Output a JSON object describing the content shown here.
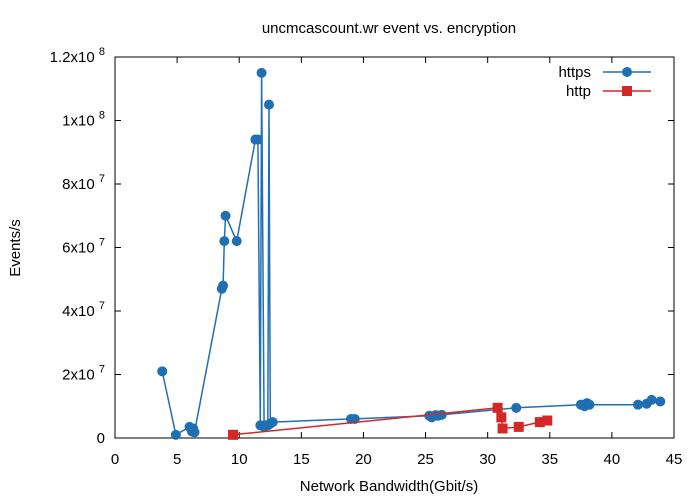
{
  "chart_data": {
    "type": "line",
    "title": "uncmcascount.wr event vs. encryption",
    "xlabel": "Network Bandwidth(Gbit/s)",
    "ylabel": "Events/s",
    "xlim": [
      0,
      45
    ],
    "ylim": [
      0,
      120000000
    ],
    "x_ticks": [
      0,
      5,
      10,
      15,
      20,
      25,
      30,
      35,
      40,
      45
    ],
    "y_ticks": [
      {
        "value": 0,
        "mantissa": "0",
        "exp": ""
      },
      {
        "value": 20000000,
        "mantissa": "2x10",
        "exp": "7"
      },
      {
        "value": 40000000,
        "mantissa": "4x10",
        "exp": "7"
      },
      {
        "value": 60000000,
        "mantissa": "6x10",
        "exp": "7"
      },
      {
        "value": 80000000,
        "mantissa": "8x10",
        "exp": "7"
      },
      {
        "value": 100000000,
        "mantissa": "1x10",
        "exp": "8"
      },
      {
        "value": 120000000,
        "mantissa": "1.2x10",
        "exp": "8"
      }
    ],
    "grid": false,
    "legend_position": "top-right",
    "series": [
      {
        "name": "https",
        "color": "#1f6fb2",
        "marker": "circle",
        "points": [
          [
            3.8,
            21000000
          ],
          [
            4.9,
            1000000
          ],
          [
            6.0,
            3500000
          ],
          [
            6.2,
            2000000
          ],
          [
            6.3,
            3000000
          ],
          [
            6.4,
            1800000
          ],
          [
            8.6,
            47000000
          ],
          [
            8.7,
            48000000
          ],
          [
            8.8,
            62000000
          ],
          [
            8.9,
            70000000
          ],
          [
            9.8,
            62000000
          ],
          [
            11.3,
            94000000
          ],
          [
            11.5,
            94000000
          ],
          [
            11.7,
            4000000
          ],
          [
            11.8,
            115000000
          ],
          [
            12.0,
            3500000
          ],
          [
            12.1,
            4000000
          ],
          [
            12.3,
            4000000
          ],
          [
            12.4,
            105000000
          ],
          [
            12.5,
            4500000
          ],
          [
            12.7,
            5000000
          ],
          [
            19.0,
            6000000
          ],
          [
            19.3,
            6000000
          ],
          [
            25.3,
            7000000
          ],
          [
            25.5,
            6500000
          ],
          [
            25.8,
            7200000
          ],
          [
            26.0,
            7000000
          ],
          [
            26.3,
            7300000
          ],
          [
            32.3,
            9500000
          ],
          [
            37.5,
            10500000
          ],
          [
            37.8,
            10000000
          ],
          [
            38.0,
            11000000
          ],
          [
            38.2,
            10500000
          ],
          [
            42.1,
            10500000
          ],
          [
            42.8,
            10800000
          ],
          [
            43.2,
            12000000
          ],
          [
            43.9,
            11500000
          ]
        ]
      },
      {
        "name": "http",
        "color": "#d62728",
        "marker": "square",
        "points": [
          [
            9.5,
            1000000
          ],
          [
            30.8,
            9500000
          ],
          [
            31.1,
            6500000
          ],
          [
            31.2,
            3000000
          ],
          [
            32.5,
            3500000
          ],
          [
            34.2,
            5000000
          ],
          [
            34.8,
            5500000
          ]
        ]
      }
    ]
  }
}
